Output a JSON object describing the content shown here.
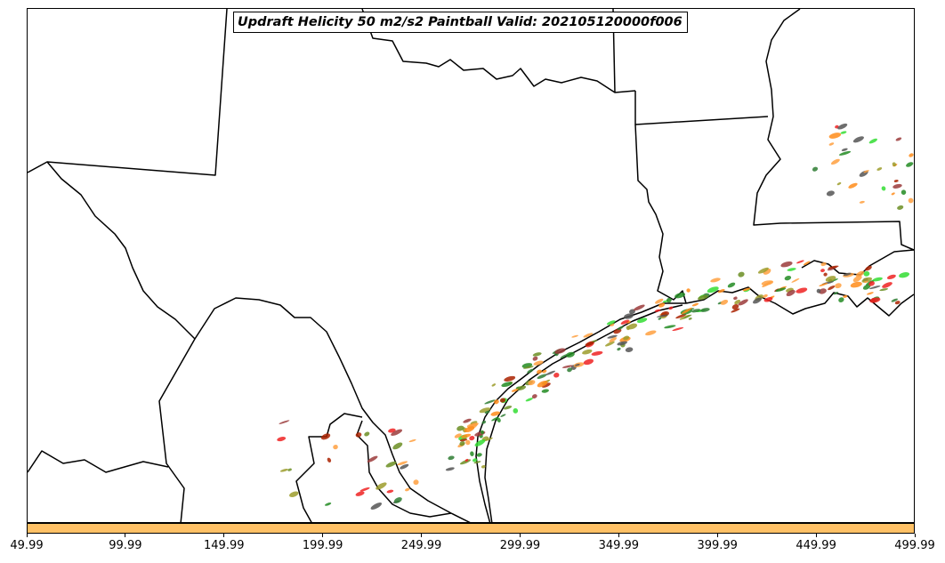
{
  "title": "Updraft Helicity 50 m2/s2 Paintball Valid: 202105120000f006",
  "colorbar": {
    "color": "#ffc166",
    "ticks": [
      "49.99",
      "99.99",
      "149.99",
      "199.99",
      "249.99",
      "299.99",
      "349.99",
      "399.99",
      "449.99",
      "499.99"
    ]
  },
  "paintball_colors": [
    "#2e7d32",
    "#33dd33",
    "#ff8c1a",
    "#ee2222",
    "#aa2200",
    "#9b3b3b",
    "#9c9c2c",
    "#555555",
    "#6b8e23",
    "#ffa040",
    "#228b22"
  ],
  "icons": {
    "map": "state-boundary-map",
    "swaths": "paintball-swaths"
  }
}
